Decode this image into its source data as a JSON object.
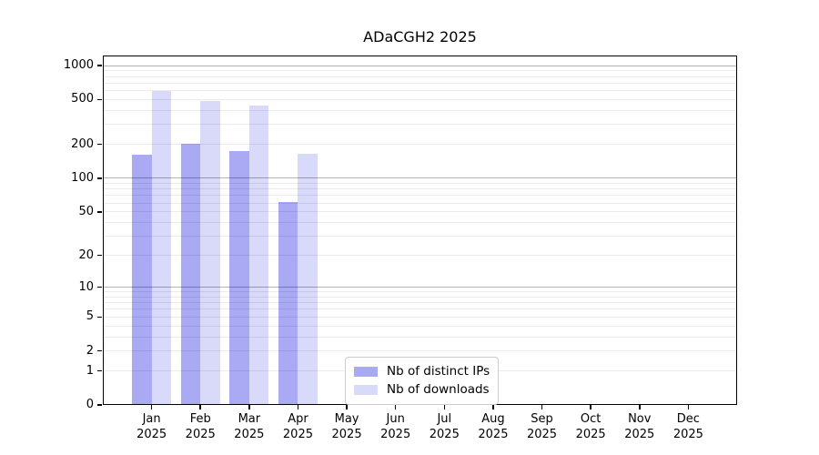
{
  "title": "ADaCGH2 2025",
  "colors": {
    "background": "#ffffff",
    "axis": "#000000",
    "grid_minor": "rgba(0,0,0,0.08)",
    "grid_major": "rgba(0,0,0,0.30)",
    "legend_border": "#cccccc"
  },
  "legend": {
    "items": [
      {
        "label": "Nb of distinct IPs",
        "color": "#a9a9f4"
      },
      {
        "label": "Nb of downloads",
        "color": "#d9d9fa"
      }
    ]
  },
  "chart_data": {
    "type": "bar",
    "title": "ADaCGH2 2025",
    "xlabel": "",
    "ylabel": "",
    "year": "2025",
    "categories": [
      "Jan",
      "Feb",
      "Mar",
      "Apr",
      "May",
      "Jun",
      "Jul",
      "Aug",
      "Sep",
      "Oct",
      "Nov",
      "Dec"
    ],
    "series": [
      {
        "name": "Nb of distinct IPs",
        "color": "#a9a9f4",
        "values": [
          161,
          204,
          176,
          61,
          null,
          null,
          null,
          null,
          null,
          null,
          null,
          null
        ]
      },
      {
        "name": "Nb of downloads",
        "color": "#d9d9fa",
        "values": [
          600,
          490,
          445,
          166,
          null,
          null,
          null,
          null,
          null,
          null,
          null,
          null
        ]
      }
    ],
    "yscale": "log1p",
    "ylim": [
      0,
      1228
    ],
    "yticks": [
      0,
      1,
      2,
      5,
      10,
      20,
      50,
      100,
      200,
      500,
      1000
    ],
    "grid": true,
    "grid_minor_values": [
      1,
      2,
      3,
      4,
      5,
      6,
      7,
      8,
      9,
      20,
      30,
      40,
      50,
      60,
      70,
      80,
      90,
      200,
      300,
      400,
      500,
      600,
      700,
      800,
      900
    ],
    "grid_major_values": [
      10,
      100,
      1000
    ],
    "legend_position": "lower center"
  }
}
